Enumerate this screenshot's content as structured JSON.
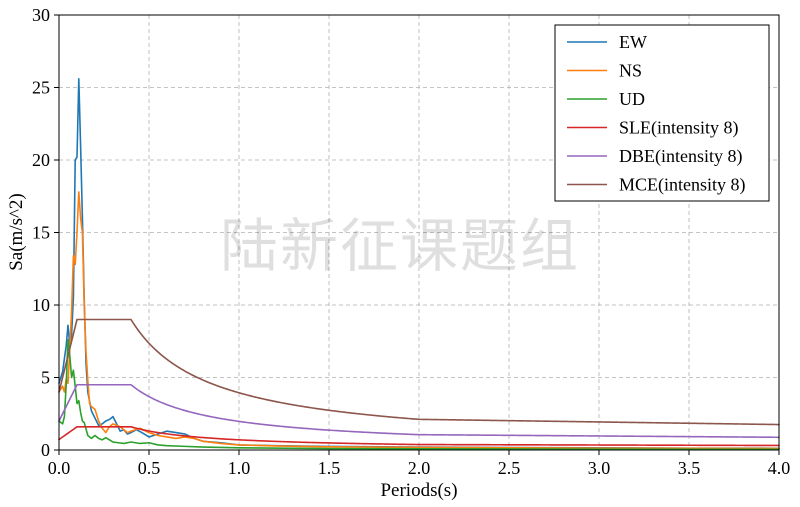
{
  "watermark": "陆新征课题组",
  "chart_data": {
    "type": "line",
    "title": "",
    "xlabel": "Periods(s)",
    "ylabel": "Sa(m/s^2)",
    "xlim": [
      0.0,
      4.0
    ],
    "ylim": [
      0,
      30
    ],
    "xticks": [
      "0.0",
      "0.5",
      "1.0",
      "1.5",
      "2.0",
      "2.5",
      "3.0",
      "3.5",
      "4.0"
    ],
    "yticks": [
      "0",
      "5",
      "10",
      "15",
      "20",
      "25",
      "30"
    ],
    "grid": true,
    "legend_position": "top-right",
    "series": [
      {
        "name": "EW",
        "color": "#1f77b4",
        "points": [
          [
            0.0,
            4.6
          ],
          [
            0.02,
            5.4
          ],
          [
            0.04,
            7.2
          ],
          [
            0.05,
            8.6
          ],
          [
            0.06,
            7.2
          ],
          [
            0.07,
            8.0
          ],
          [
            0.08,
            10.5
          ],
          [
            0.09,
            20.0
          ],
          [
            0.1,
            20.2
          ],
          [
            0.11,
            25.6
          ],
          [
            0.12,
            21.0
          ],
          [
            0.13,
            16.0
          ],
          [
            0.14,
            10.5
          ],
          [
            0.15,
            6.0
          ],
          [
            0.16,
            4.0
          ],
          [
            0.18,
            2.7
          ],
          [
            0.2,
            2.2
          ],
          [
            0.22,
            1.7
          ],
          [
            0.24,
            1.8
          ],
          [
            0.26,
            2.0
          ],
          [
            0.28,
            2.1
          ],
          [
            0.3,
            2.3
          ],
          [
            0.32,
            1.8
          ],
          [
            0.34,
            1.3
          ],
          [
            0.36,
            1.4
          ],
          [
            0.38,
            1.1
          ],
          [
            0.4,
            1.2
          ],
          [
            0.43,
            1.4
          ],
          [
            0.46,
            1.2
          ],
          [
            0.5,
            0.9
          ],
          [
            0.55,
            1.1
          ],
          [
            0.6,
            1.3
          ],
          [
            0.65,
            1.2
          ],
          [
            0.7,
            1.1
          ],
          [
            0.75,
            0.8
          ],
          [
            0.8,
            0.6
          ],
          [
            0.9,
            0.5
          ],
          [
            1.0,
            0.35
          ],
          [
            1.2,
            0.3
          ],
          [
            1.5,
            0.25
          ],
          [
            2.0,
            0.2
          ],
          [
            2.5,
            0.17
          ],
          [
            3.0,
            0.15
          ],
          [
            3.5,
            0.13
          ],
          [
            4.0,
            0.12
          ]
        ]
      },
      {
        "name": "NS",
        "color": "#ff7f0e",
        "points": [
          [
            0.0,
            4.0
          ],
          [
            0.02,
            4.4
          ],
          [
            0.03,
            4.0
          ],
          [
            0.04,
            4.9
          ],
          [
            0.05,
            4.6
          ],
          [
            0.06,
            7.0
          ],
          [
            0.07,
            9.6
          ],
          [
            0.08,
            13.4
          ],
          [
            0.09,
            12.8
          ],
          [
            0.1,
            15.0
          ],
          [
            0.11,
            17.8
          ],
          [
            0.12,
            16.0
          ],
          [
            0.13,
            15.0
          ],
          [
            0.14,
            10.0
          ],
          [
            0.15,
            6.8
          ],
          [
            0.16,
            4.8
          ],
          [
            0.17,
            3.2
          ],
          [
            0.18,
            3.0
          ],
          [
            0.2,
            2.8
          ],
          [
            0.22,
            2.0
          ],
          [
            0.24,
            1.5
          ],
          [
            0.26,
            1.2
          ],
          [
            0.28,
            1.6
          ],
          [
            0.3,
            1.8
          ],
          [
            0.32,
            1.7
          ],
          [
            0.34,
            1.6
          ],
          [
            0.36,
            1.4
          ],
          [
            0.38,
            1.2
          ],
          [
            0.4,
            1.3
          ],
          [
            0.45,
            1.5
          ],
          [
            0.5,
            1.2
          ],
          [
            0.55,
            1.0
          ],
          [
            0.6,
            0.9
          ],
          [
            0.65,
            0.8
          ],
          [
            0.7,
            0.9
          ],
          [
            0.75,
            0.8
          ],
          [
            0.8,
            0.6
          ],
          [
            0.9,
            0.45
          ],
          [
            1.0,
            0.35
          ],
          [
            1.2,
            0.28
          ],
          [
            1.5,
            0.22
          ],
          [
            2.0,
            0.18
          ],
          [
            2.5,
            0.15
          ],
          [
            3.0,
            0.13
          ],
          [
            3.5,
            0.12
          ],
          [
            4.0,
            0.11
          ]
        ]
      },
      {
        "name": "UD",
        "color": "#2ca02c",
        "points": [
          [
            0.0,
            2.0
          ],
          [
            0.02,
            1.8
          ],
          [
            0.03,
            2.3
          ],
          [
            0.04,
            4.5
          ],
          [
            0.05,
            7.6
          ],
          [
            0.06,
            6.5
          ],
          [
            0.07,
            5.0
          ],
          [
            0.08,
            5.5
          ],
          [
            0.09,
            4.4
          ],
          [
            0.1,
            3.2
          ],
          [
            0.11,
            3.4
          ],
          [
            0.12,
            2.6
          ],
          [
            0.13,
            2.0
          ],
          [
            0.14,
            1.9
          ],
          [
            0.16,
            1.0
          ],
          [
            0.18,
            0.8
          ],
          [
            0.2,
            1.0
          ],
          [
            0.22,
            0.8
          ],
          [
            0.24,
            0.7
          ],
          [
            0.26,
            0.85
          ],
          [
            0.28,
            0.7
          ],
          [
            0.3,
            0.55
          ],
          [
            0.33,
            0.5
          ],
          [
            0.36,
            0.45
          ],
          [
            0.4,
            0.55
          ],
          [
            0.45,
            0.45
          ],
          [
            0.5,
            0.5
          ],
          [
            0.55,
            0.35
          ],
          [
            0.6,
            0.3
          ],
          [
            0.7,
            0.25
          ],
          [
            0.8,
            0.2
          ],
          [
            1.0,
            0.15
          ],
          [
            1.5,
            0.1
          ],
          [
            2.0,
            0.08
          ],
          [
            3.0,
            0.06
          ],
          [
            4.0,
            0.05
          ]
        ]
      },
      {
        "name": "SLE(intensity 8)",
        "color": "#d62728",
        "curve": {
          "amax": 1.6,
          "a0": 0.72,
          "t1": 0.1,
          "tg": 0.4,
          "t5": 2.0,
          "gamma": 0.9,
          "eta1": 0.02,
          "eta2": 1.0
        }
      },
      {
        "name": "DBE(intensity 8)",
        "color": "#9467bd",
        "curve": {
          "amax": 4.5,
          "a0": 2.0,
          "t1": 0.1,
          "tg": 0.4,
          "t5": 2.0,
          "gamma": 0.9,
          "eta1": 0.02,
          "eta2": 1.0
        }
      },
      {
        "name": "MCE(intensity 8)",
        "color": "#8c564b",
        "curve": {
          "amax": 9.0,
          "a0": 4.0,
          "t1": 0.1,
          "tg": 0.4,
          "t5": 2.0,
          "gamma": 0.9,
          "eta1": 0.02,
          "eta2": 1.0
        }
      }
    ]
  }
}
